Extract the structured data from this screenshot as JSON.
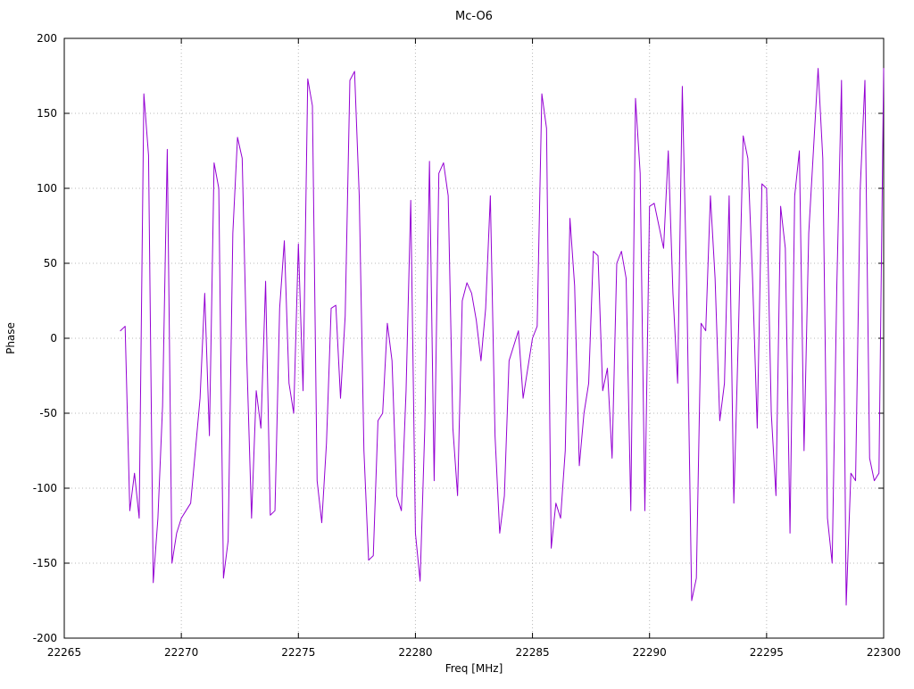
{
  "title": "Mc-O6",
  "chart_data": {
    "type": "line",
    "title": "Mc-O6",
    "xlabel": "Freq [MHz]",
    "ylabel": "Phase",
    "xlim": [
      22265,
      22300
    ],
    "ylim": [
      -200,
      200
    ],
    "xticks": [
      22265,
      22270,
      22275,
      22280,
      22285,
      22290,
      22295,
      22300
    ],
    "yticks": [
      -200,
      -150,
      -100,
      -50,
      0,
      50,
      100,
      150,
      200
    ],
    "grid": true,
    "legend": "none",
    "line_color": "#9400d3",
    "series": [
      {
        "name": "Mc-O6",
        "x_start": 22267.4,
        "x_step": 0.2,
        "values": [
          5,
          8,
          -115,
          -90,
          -120,
          163,
          122,
          -163,
          -120,
          -45,
          126,
          -150,
          -130,
          -120,
          -115,
          -110,
          -75,
          -40,
          30,
          -65,
          117,
          100,
          -160,
          -135,
          70,
          134,
          120,
          -15,
          -120,
          -35,
          -60,
          38,
          -118,
          -115,
          20,
          65,
          -30,
          -50,
          63,
          -35,
          173,
          155,
          -95,
          -123,
          -70,
          20,
          22,
          -40,
          15,
          172,
          178,
          95,
          -75,
          -148,
          -145,
          -55,
          -50,
          10,
          -15,
          -105,
          -115,
          -35,
          92,
          -130,
          -162,
          -60,
          118,
          -95,
          110,
          117,
          95,
          -60,
          -105,
          25,
          37,
          30,
          12,
          -15,
          20,
          95,
          -65,
          -130,
          -105,
          -15,
          -5,
          5,
          -40,
          -20,
          0,
          8,
          163,
          140,
          -140,
          -110,
          -120,
          -75,
          80,
          35,
          -85,
          -50,
          -30,
          58,
          55,
          -35,
          -20,
          -80,
          50,
          58,
          40,
          -115,
          160,
          110,
          -115,
          88,
          90,
          75,
          60,
          125,
          30,
          -30,
          168,
          25,
          -175,
          -160,
          10,
          5,
          95,
          40,
          -55,
          -30,
          95,
          -110,
          5,
          135,
          120,
          40,
          -60,
          103,
          100,
          -50,
          -105,
          88,
          60,
          -130,
          95,
          125,
          -75,
          70,
          125,
          180,
          120,
          -120,
          -150,
          35,
          172,
          -178,
          -90,
          -95,
          100,
          172,
          -80,
          -95,
          -90,
          180
        ]
      }
    ]
  }
}
